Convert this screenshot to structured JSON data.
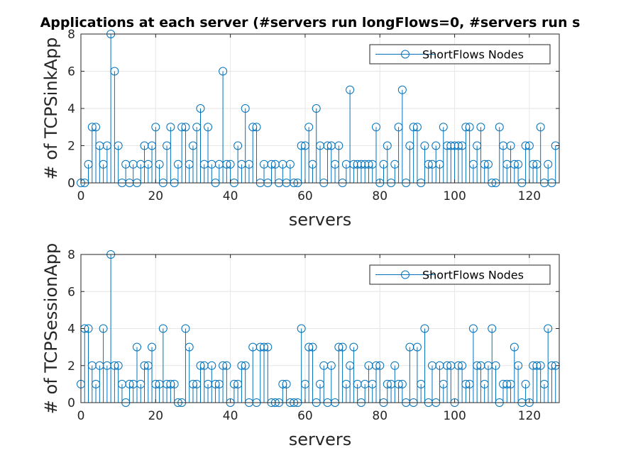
{
  "colors": {
    "series": "#0072BD",
    "grid": "#e6e6e6",
    "axis": "#262626"
  },
  "chart_data": [
    {
      "type": "stem",
      "title": "Applications at each server (#servers run longFlows=0,  #servers run s",
      "xlabel": "servers",
      "ylabel": "# of TCPSinkApp",
      "xlim": [
        0,
        128
      ],
      "ylim": [
        0,
        8
      ],
      "xticks": [
        0,
        20,
        40,
        60,
        80,
        100,
        120
      ],
      "yticks": [
        0,
        2,
        4,
        6,
        8
      ],
      "grid": true,
      "legend_position": "top-right",
      "series": [
        {
          "name": "ShortFlows  Nodes",
          "values": [
            0,
            0,
            1,
            3,
            3,
            2,
            1,
            2,
            8,
            6,
            2,
            0,
            1,
            0,
            1,
            0,
            1,
            2,
            1,
            2,
            3,
            1,
            0,
            2,
            3,
            0,
            1,
            3,
            3,
            1,
            2,
            3,
            4,
            1,
            3,
            1,
            0,
            1,
            6,
            1,
            1,
            0,
            2,
            1,
            4,
            1,
            3,
            3,
            0,
            1,
            0,
            1,
            1,
            0,
            1,
            0,
            1,
            0,
            0,
            2,
            2,
            3,
            1,
            4,
            2,
            0,
            2,
            2,
            1,
            2,
            0,
            1,
            5,
            1,
            1,
            1,
            1,
            1,
            1,
            3,
            0,
            1,
            2,
            0,
            1,
            3,
            5,
            0,
            2,
            3,
            3,
            0,
            2,
            1,
            1,
            2,
            1,
            3,
            2,
            2,
            2,
            2,
            2,
            3,
            3,
            1,
            2,
            3,
            1,
            1,
            0,
            0,
            3,
            2,
            1,
            2,
            1,
            1,
            0,
            2,
            2,
            1,
            1,
            3,
            0,
            1,
            0,
            2
          ]
        }
      ]
    },
    {
      "type": "stem",
      "xlabel": "servers",
      "ylabel": "# of TCPSessionApp",
      "xlim": [
        0,
        128
      ],
      "ylim": [
        0,
        8
      ],
      "xticks": [
        0,
        20,
        40,
        60,
        80,
        100,
        120
      ],
      "yticks": [
        0,
        2,
        4,
        6,
        8
      ],
      "grid": true,
      "legend_position": "top-right",
      "series": [
        {
          "name": "ShortFlows  Nodes",
          "values": [
            1,
            4,
            4,
            2,
            1,
            2,
            4,
            2,
            8,
            2,
            2,
            1,
            0,
            1,
            1,
            3,
            1,
            2,
            2,
            3,
            1,
            1,
            4,
            1,
            1,
            1,
            0,
            0,
            4,
            3,
            1,
            1,
            2,
            2,
            1,
            2,
            1,
            1,
            2,
            2,
            0,
            1,
            1,
            2,
            2,
            0,
            3,
            0,
            3,
            3,
            3,
            0,
            0,
            0,
            1,
            1,
            0,
            0,
            0,
            4,
            1,
            3,
            3,
            0,
            1,
            2,
            0,
            2,
            0,
            3,
            3,
            1,
            2,
            3,
            1,
            0,
            1,
            2,
            1,
            2,
            2,
            0,
            1,
            1,
            2,
            1,
            1,
            0,
            3,
            0,
            3,
            1,
            4,
            0,
            2,
            0,
            2,
            1,
            2,
            2,
            0,
            2,
            2,
            1,
            1,
            4,
            2,
            2,
            1,
            2,
            4,
            2,
            0,
            1,
            1,
            1,
            3,
            2,
            0,
            1,
            0,
            2,
            2,
            2,
            1,
            4,
            2,
            2
          ]
        }
      ]
    }
  ]
}
